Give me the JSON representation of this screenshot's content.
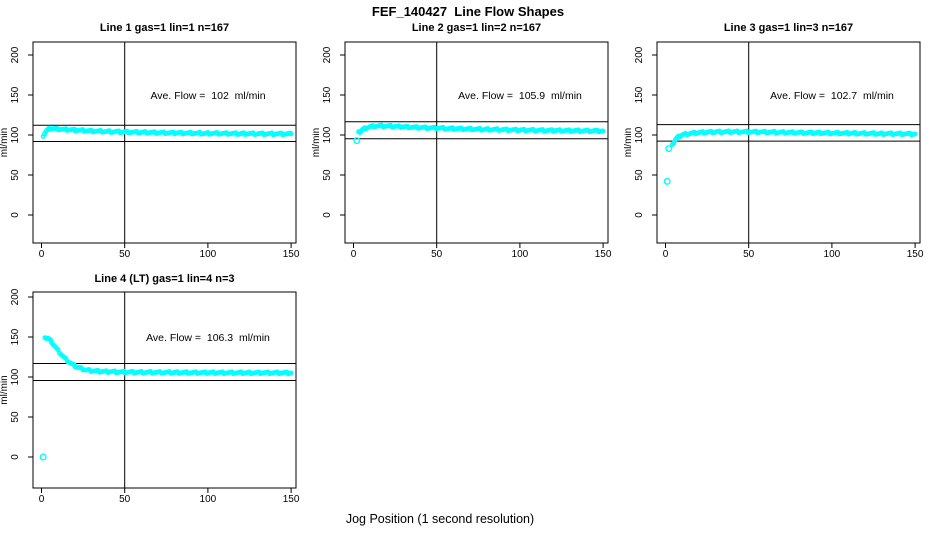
{
  "page": {
    "title": "FEF_140427  Line Flow Shapes",
    "xlabel": "Jog Position (1 second resolution)",
    "bg_color": "#FFFFFF",
    "axis_color": "#000000",
    "marker_color": "#00FFFF"
  },
  "chart_data": [
    {
      "type": "scatter",
      "title": "Line 1 gas=1 lin=1 n=167",
      "annotation": "Ave. Flow =  102  ml/min",
      "ave_flow": 102,
      "n": 167,
      "ylabel": "ml/min",
      "xlim": [
        0,
        150
      ],
      "ylim": [
        0,
        200
      ],
      "xticks": [
        0,
        50,
        100,
        150
      ],
      "yticks": [
        0,
        50,
        100,
        150,
        200
      ],
      "vline_x": 50,
      "hlines": [
        112.2,
        91.8
      ],
      "marker_color": "#00FFFF",
      "outliers": [],
      "points": [
        [
          1,
          97
        ],
        [
          2,
          103
        ],
        [
          3,
          105.5
        ],
        [
          4,
          107
        ],
        [
          5,
          108
        ],
        [
          7,
          108
        ],
        [
          10,
          107.5
        ],
        [
          15,
          106.8
        ],
        [
          20,
          106.2
        ],
        [
          30,
          105.1
        ],
        [
          40,
          104.3
        ],
        [
          50,
          103.8
        ],
        [
          60,
          103.3
        ],
        [
          80,
          102.6
        ],
        [
          100,
          102.1
        ],
        [
          120,
          101.7
        ],
        [
          150,
          101.3
        ]
      ]
    },
    {
      "type": "scatter",
      "title": "Line 2 gas=1 lin=2 n=167",
      "annotation": "Ave. Flow =  105.9  ml/min",
      "ave_flow": 105.9,
      "n": 167,
      "ylabel": "ml/min",
      "xlim": [
        0,
        150
      ],
      "ylim": [
        0,
        200
      ],
      "xticks": [
        0,
        50,
        100,
        150
      ],
      "yticks": [
        0,
        50,
        100,
        150,
        200
      ],
      "vline_x": 50,
      "hlines": [
        116.5,
        95.3
      ],
      "marker_color": "#00FFFF",
      "outliers": [
        [
          2,
          93
        ]
      ],
      "points": [
        [
          3,
          103
        ],
        [
          4,
          104.5
        ],
        [
          5,
          106
        ],
        [
          6,
          107.3
        ],
        [
          8,
          109.2
        ],
        [
          10,
          110.3
        ],
        [
          13,
          111.1
        ],
        [
          16,
          111.4
        ],
        [
          20,
          111.2
        ],
        [
          25,
          110.7
        ],
        [
          30,
          110.2
        ],
        [
          40,
          109.3
        ],
        [
          50,
          108.6
        ],
        [
          60,
          108
        ],
        [
          80,
          107
        ],
        [
          100,
          106.2
        ],
        [
          120,
          105.6
        ],
        [
          150,
          105.1
        ]
      ]
    },
    {
      "type": "scatter",
      "title": "Line 3 gas=1 lin=3 n=167",
      "annotation": "Ave. Flow =  102.7  ml/min",
      "ave_flow": 102.7,
      "n": 167,
      "ylabel": "ml/min",
      "xlim": [
        0,
        150
      ],
      "ylim": [
        0,
        200
      ],
      "xticks": [
        0,
        50,
        100,
        150
      ],
      "yticks": [
        0,
        50,
        100,
        150,
        200
      ],
      "vline_x": 50,
      "hlines": [
        113.0,
        92.4
      ],
      "marker_color": "#00FFFF",
      "outliers": [
        [
          1,
          42
        ],
        [
          2,
          83
        ]
      ],
      "points": [
        [
          4,
          87
        ],
        [
          5,
          91
        ],
        [
          6,
          94.5
        ],
        [
          7,
          96.5
        ],
        [
          8,
          98
        ],
        [
          10,
          100
        ],
        [
          12,
          101
        ],
        [
          15,
          102
        ],
        [
          20,
          103
        ],
        [
          25,
          103.5
        ],
        [
          30,
          103.8
        ],
        [
          40,
          104
        ],
        [
          55,
          103.8
        ],
        [
          70,
          103.3
        ],
        [
          90,
          102.7
        ],
        [
          110,
          102.2
        ],
        [
          130,
          101.7
        ],
        [
          150,
          101.3
        ]
      ]
    },
    {
      "type": "scatter",
      "title": "Line 4 (LT) gas=1 lin=4 n=3",
      "annotation": "Ave. Flow =  106.3  ml/min",
      "ave_flow": 106.3,
      "n": 3,
      "ylabel": "ml/min",
      "xlim": [
        0,
        150
      ],
      "ylim": [
        0,
        200
      ],
      "xticks": [
        0,
        50,
        100,
        150
      ],
      "yticks": [
        0,
        50,
        100,
        150,
        200
      ],
      "vline_x": 50,
      "hlines": [
        116.9,
        95.7
      ],
      "marker_color": "#00FFFF",
      "outliers": [
        [
          1,
          0
        ]
      ],
      "points": [
        [
          2,
          148
        ],
        [
          3,
          149.5
        ],
        [
          4,
          148.5
        ],
        [
          5,
          146.5
        ],
        [
          6,
          144
        ],
        [
          8,
          138.5
        ],
        [
          10,
          133
        ],
        [
          12,
          128
        ],
        [
          14,
          123.5
        ],
        [
          16,
          119.5
        ],
        [
          18,
          116.5
        ],
        [
          20,
          114
        ],
        [
          22,
          112
        ],
        [
          24,
          110.5
        ],
        [
          26,
          109.3
        ],
        [
          28,
          108.4
        ],
        [
          30,
          107.8
        ],
        [
          35,
          107
        ],
        [
          40,
          106.6
        ],
        [
          50,
          106.2
        ],
        [
          60,
          105.9
        ],
        [
          80,
          105.6
        ],
        [
          100,
          105.4
        ],
        [
          125,
          105.3
        ],
        [
          150,
          105.2
        ]
      ]
    }
  ]
}
